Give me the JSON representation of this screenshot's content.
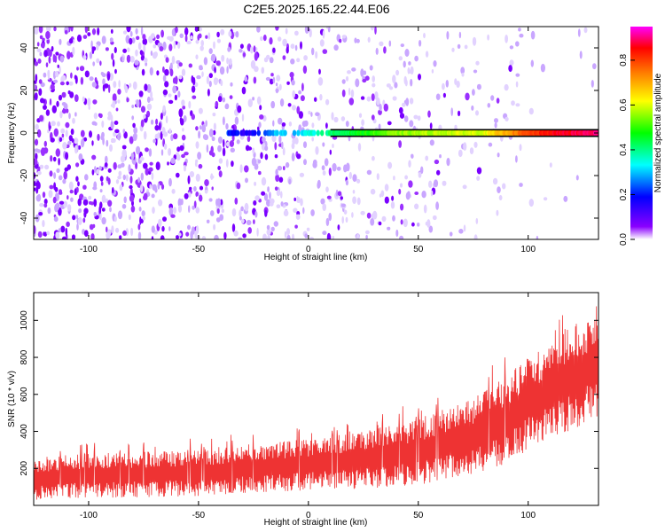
{
  "chart_data": [
    {
      "type": "heatmap",
      "title": "C2E5.2025.165.22.44.E06",
      "xlabel": "Height of straight line (km)",
      "ylabel": "Frequency (Hz)",
      "xlim": [
        -125,
        132
      ],
      "ylim": [
        -50,
        50
      ],
      "x_ticks": [
        -100,
        -50,
        0,
        50,
        100
      ],
      "y_ticks": [
        -40,
        -20,
        0,
        20,
        40
      ],
      "colorbar": {
        "label": "Normalized spectral amplitude",
        "range": [
          0.0,
          0.95
        ],
        "ticks": [
          0.0,
          0.2,
          0.4,
          0.6,
          0.8
        ],
        "colormap": [
          "#ffffff",
          "#8a00ff",
          "#0000ff",
          "#00ffff",
          "#00ff00",
          "#ffff00",
          "#ff7f00",
          "#ff0000",
          "#ff00ff"
        ]
      },
      "ridge": {
        "frequency": 0,
        "points": [
          {
            "x": -37,
            "value": 0.22
          },
          {
            "x": -28,
            "value": 0.15
          },
          {
            "x": -15,
            "value": 0.3
          },
          {
            "x": -5,
            "value": 0.3
          },
          {
            "x": 5,
            "value": 0.38
          },
          {
            "x": 20,
            "value": 0.45
          },
          {
            "x": 40,
            "value": 0.55
          },
          {
            "x": 60,
            "value": 0.58
          },
          {
            "x": 80,
            "value": 0.6
          },
          {
            "x": 95,
            "value": 0.75
          },
          {
            "x": 110,
            "value": 0.85
          },
          {
            "x": 132,
            "value": 0.9
          }
        ]
      },
      "grid": false
    },
    {
      "type": "area",
      "xlabel": "Height of straight line (km)",
      "ylabel": "SNR (10 * v/v)",
      "xlim": [
        -125,
        132
      ],
      "ylim": [
        0,
        1150
      ],
      "x_ticks": [
        -100,
        -50,
        0,
        50,
        100
      ],
      "y_ticks": [
        200,
        400,
        600,
        800,
        1000
      ],
      "color": "#ee3333",
      "envelope": [
        {
          "x": -125,
          "low": 30,
          "high": 260
        },
        {
          "x": -100,
          "low": 40,
          "high": 280
        },
        {
          "x": -50,
          "low": 50,
          "high": 300
        },
        {
          "x": -25,
          "low": 70,
          "high": 330
        },
        {
          "x": 0,
          "low": 80,
          "high": 360
        },
        {
          "x": 25,
          "low": 90,
          "high": 400
        },
        {
          "x": 50,
          "low": 110,
          "high": 470
        },
        {
          "x": 75,
          "low": 160,
          "high": 580
        },
        {
          "x": 90,
          "low": 220,
          "high": 700
        },
        {
          "x": 100,
          "low": 300,
          "high": 800
        },
        {
          "x": 115,
          "low": 380,
          "high": 930
        },
        {
          "x": 132,
          "low": 480,
          "high": 1050
        }
      ],
      "grid": false
    }
  ]
}
